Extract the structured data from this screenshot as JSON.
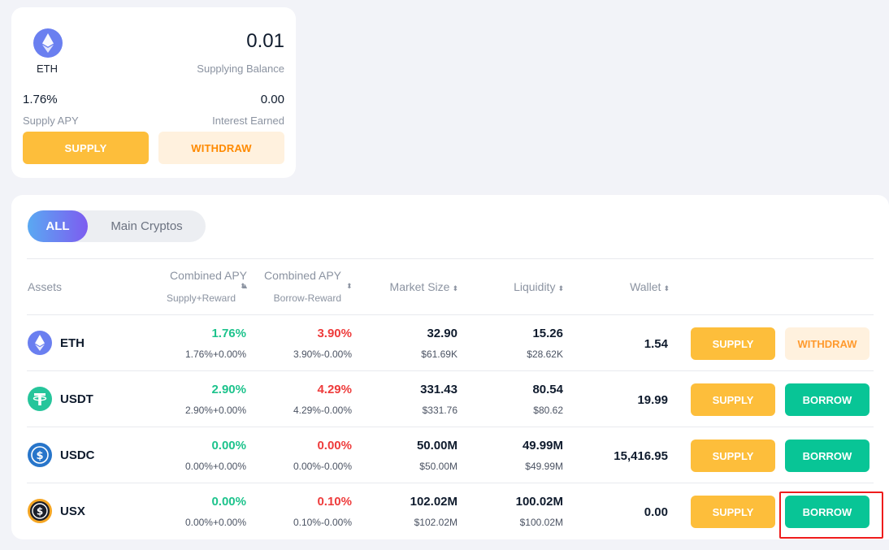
{
  "summary": {
    "asset": "ETH",
    "balance": "0.01",
    "balance_label": "Supplying Balance",
    "apy": "1.76%",
    "apy_label": "Supply APY",
    "interest": "0.00",
    "interest_label": "Interest Earned",
    "supply_label": "SUPPLY",
    "withdraw_label": "WITHDRAW"
  },
  "tabs": {
    "all": "ALL",
    "main": "Main Cryptos"
  },
  "columns": {
    "assets": "Assets",
    "supply_apy": "Combined APY",
    "supply_apy_sub": "Supply+Reward",
    "borrow_apy": "Combined APY",
    "borrow_apy_sub": "Borrow-Reward",
    "market_size": "Market Size",
    "liquidity": "Liquidity",
    "wallet": "Wallet",
    "sort_icon": "sort-icon"
  },
  "rows": [
    {
      "name": "ETH",
      "icon": "eth-icon",
      "supply_apy": "1.76%",
      "supply_apy_detail": "1.76%+0.00%",
      "borrow_apy": "3.90%",
      "borrow_apy_detail": "3.90%-0.00%",
      "market_size": "32.90",
      "market_size_usd": "$61.69K",
      "liquidity": "15.26",
      "liquidity_usd": "$28.62K",
      "wallet": "1.54",
      "btn1": "SUPPLY",
      "btn2": "WITHDRAW"
    },
    {
      "name": "USDT",
      "icon": "usdt-icon",
      "supply_apy": "2.90%",
      "supply_apy_detail": "2.90%+0.00%",
      "borrow_apy": "4.29%",
      "borrow_apy_detail": "4.29%-0.00%",
      "market_size": "331.43",
      "market_size_usd": "$331.76",
      "liquidity": "80.54",
      "liquidity_usd": "$80.62",
      "wallet": "19.99",
      "btn1": "SUPPLY",
      "btn2": "BORROW"
    },
    {
      "name": "USDC",
      "icon": "usdc-icon",
      "supply_apy": "0.00%",
      "supply_apy_detail": "0.00%+0.00%",
      "borrow_apy": "0.00%",
      "borrow_apy_detail": "0.00%-0.00%",
      "market_size": "50.00M",
      "market_size_usd": "$50.00M",
      "liquidity": "49.99M",
      "liquidity_usd": "$49.99M",
      "wallet": "15,416.95",
      "btn1": "SUPPLY",
      "btn2": "BORROW"
    },
    {
      "name": "USX",
      "icon": "usx-icon",
      "supply_apy": "0.00%",
      "supply_apy_detail": "0.00%+0.00%",
      "borrow_apy": "0.10%",
      "borrow_apy_detail": "0.10%-0.00%",
      "market_size": "102.02M",
      "market_size_usd": "$102.02M",
      "liquidity": "100.02M",
      "liquidity_usd": "$100.02M",
      "wallet": "0.00",
      "btn1": "SUPPLY",
      "btn2": "BORROW"
    }
  ],
  "colors": {
    "supply": "#fdbe3b",
    "borrow": "#08c596",
    "withdraw_bg": "#fff1de",
    "withdraw_text": "#ff8a00",
    "positive": "#1dc38c",
    "negative": "#ee3b3b",
    "highlight": "#ee1c1c"
  }
}
